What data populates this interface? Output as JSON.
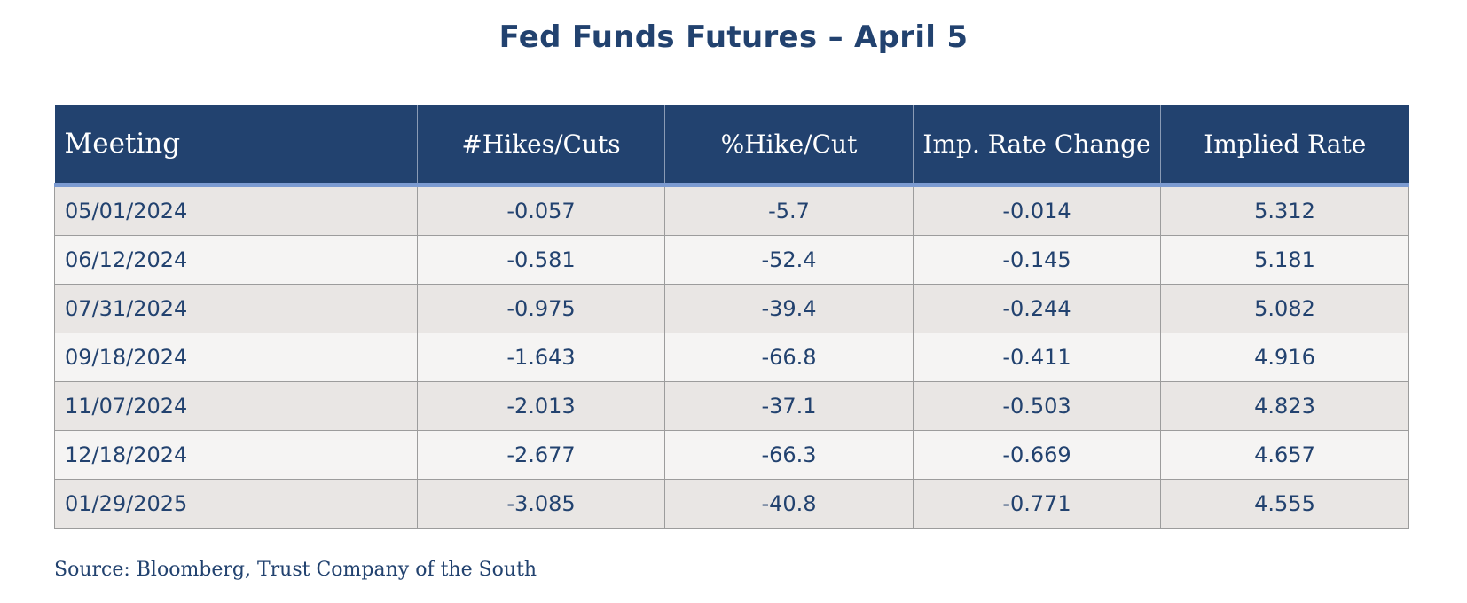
{
  "chart_data": {
    "type": "table",
    "title": "Fed Funds Futures – April 5",
    "columns": [
      "Meeting",
      "#Hikes/Cuts",
      "%Hike/Cut",
      "Imp. Rate Change",
      "Implied Rate"
    ],
    "rows": [
      [
        "05/01/2024",
        "-0.057",
        "-5.7",
        "-0.014",
        "5.312"
      ],
      [
        "06/12/2024",
        "-0.581",
        "-52.4",
        "-0.145",
        "5.181"
      ],
      [
        "07/31/2024",
        "-0.975",
        "-39.4",
        "-0.244",
        "5.082"
      ],
      [
        "09/18/2024",
        "-1.643",
        "-66.8",
        "-0.411",
        "4.916"
      ],
      [
        "11/07/2024",
        "-2.013",
        "-37.1",
        "-0.503",
        "4.823"
      ],
      [
        "12/18/2024",
        "-2.677",
        "-66.3",
        "-0.669",
        "4.657"
      ],
      [
        "01/29/2025",
        "-3.085",
        "-40.8",
        "-0.771",
        "4.555"
      ]
    ],
    "source": "Source: Bloomberg, Trust Company of the South"
  },
  "colors": {
    "header_bg": "#22426f",
    "header_rule": "#7c9bd1",
    "row_odd": "#e9e6e4",
    "row_even": "#f5f4f3",
    "text": "#22426f"
  }
}
